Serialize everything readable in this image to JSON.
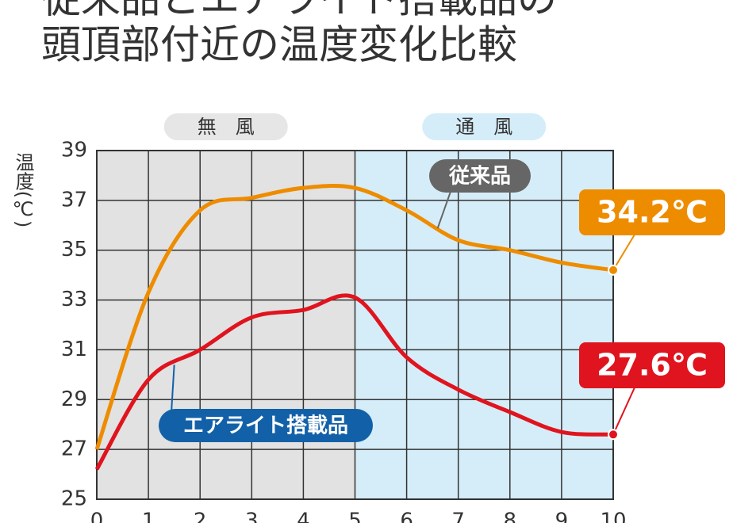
{
  "chart_data": {
    "type": "line",
    "title": "従来品とエアライト搭載品の",
    "subtitle": "頭頂部付近の温度変化比較",
    "y_label": "温度(℃)",
    "x": [
      0,
      1,
      2,
      3,
      4,
      5,
      6,
      7,
      8,
      9,
      10
    ],
    "xlim": [
      0,
      10
    ],
    "xticks": [
      0,
      1,
      2,
      3,
      4,
      5,
      6,
      7,
      8,
      9,
      10
    ],
    "ylim": [
      25,
      39
    ],
    "yticks": [
      25,
      27,
      29,
      31,
      33,
      35,
      37,
      39
    ],
    "grid": true,
    "regions": [
      {
        "label": "無　風",
        "x": [
          0,
          5
        ],
        "color": "#e2e2e2",
        "label_color": "#e6e6e6"
      },
      {
        "label": "通　風",
        "x": [
          5,
          10
        ],
        "color": "#d5edf8",
        "label_color": "#d5edf8"
      }
    ],
    "series": [
      {
        "name": "従来品",
        "color": "#ee8c00",
        "label_color": "#666666",
        "values": [
          27.0,
          33.3,
          36.6,
          37.1,
          37.5,
          37.5,
          36.6,
          35.4,
          35.0,
          34.5,
          34.2
        ],
        "value_labels": [
          null,
          null,
          null,
          null,
          null,
          null,
          null,
          null,
          null,
          null,
          "34.2℃"
        ]
      },
      {
        "name": "エアライト搭載品",
        "color": "#e0141e",
        "label_color": "#1261a8",
        "values": [
          26.2,
          29.8,
          31.0,
          32.3,
          32.6,
          33.1,
          30.7,
          29.4,
          28.5,
          27.7,
          27.6
        ],
        "value_labels": [
          null,
          null,
          null,
          null,
          null,
          null,
          null,
          null,
          null,
          null,
          "27.6℃"
        ]
      }
    ]
  }
}
